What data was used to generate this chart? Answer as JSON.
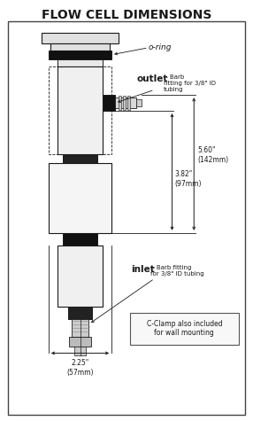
{
  "title": "FLOW CELL DIMENSIONS",
  "title_fontsize": 10,
  "title_fontweight": "bold",
  "bg_color": "#ffffff",
  "drawing_color": "#1a1a1a",
  "label_oring": "o-ring",
  "label_outlet": "outlet",
  "label_outlet_sub": "Barb\nfitting for 3/8\" ID\ntubing",
  "label_inlet": "inlet",
  "label_inlet_sub": "Barb fitting\nfor 3/8\" ID tubing",
  "dim_560": "5.60\"\n(142mm)",
  "dim_382": "3.82\"\n(97mm)",
  "dim_225": "2.25\"\n(57mm)",
  "clamp_note": "C-Clamp also included\nfor wall mounting"
}
